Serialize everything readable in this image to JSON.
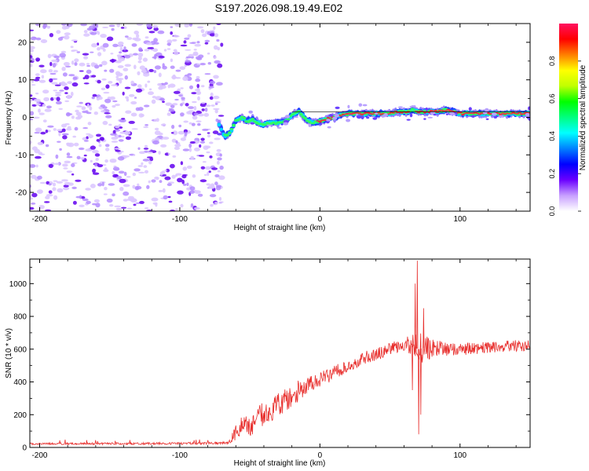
{
  "title": "S197.2026.098.19.49.E02",
  "colors": {
    "snr_line": "#e8302e",
    "ridge_core": "#e8303a",
    "axis": "#000000"
  },
  "chart_data": [
    {
      "type": "heatmap",
      "title": "S197.2026.098.19.49.E02",
      "xlabel": "Height of straight line (km)",
      "ylabel": "Frequency (Hz)",
      "xlim": [
        -207,
        150
      ],
      "ylim": [
        -25,
        25
      ],
      "xticks": [
        -200,
        -100,
        0,
        100
      ],
      "yticks": [
        -20,
        -10,
        0,
        10,
        20
      ],
      "colorbar": {
        "label": "Normalized spectral amplitude",
        "range": [
          0,
          1
        ],
        "ticks": [
          "0.0",
          "0.2",
          "0.4",
          "0.6",
          "0.8"
        ],
        "colors": [
          "#ffffff",
          "#c8a0ff",
          "#6a00ff",
          "#0000ff",
          "#0080ff",
          "#00ffff",
          "#00ff80",
          "#00ff00",
          "#c0ff00",
          "#ffff00",
          "#ff8000",
          "#ff0000",
          "#ff1060"
        ]
      },
      "noise_region_x": [
        -207,
        -70
      ],
      "ridge": {
        "x": [
          -72,
          -68,
          -64,
          -60,
          -56,
          -52,
          -48,
          -44,
          -40,
          -36,
          -30,
          -25,
          -20,
          -15,
          -10,
          -5,
          0,
          5,
          10,
          20,
          30,
          40,
          50,
          55,
          60,
          63,
          66,
          70,
          75,
          80,
          85,
          90,
          95,
          100,
          110,
          120,
          130,
          140,
          150
        ],
        "y": [
          -2,
          -5,
          -4,
          -1,
          0,
          -1,
          -0.5,
          -1.5,
          -2,
          -1.5,
          -1.5,
          -1,
          0.5,
          1.5,
          -0.5,
          -1.5,
          -1,
          -0.5,
          0,
          1,
          1,
          1,
          1,
          1.5,
          1.5,
          1.5,
          2,
          1.5,
          1.5,
          1.5,
          1.5,
          2,
          1.5,
          1,
          1,
          1,
          1,
          1,
          1
        ],
        "strength": [
          0.4,
          0.5,
          0.55,
          0.5,
          0.55,
          0.5,
          0.55,
          0.65,
          0.7,
          0.75,
          0.75,
          0.7,
          0.65,
          0.6,
          0.7,
          0.75,
          0.8,
          0.8,
          0.85,
          0.9,
          0.95,
          0.95,
          0.95,
          0.9,
          0.85,
          0.8,
          0.75,
          0.8,
          0.85,
          0.9,
          0.85,
          0.85,
          0.9,
          0.95,
          0.95,
          0.95,
          0.9,
          0.9,
          0.9
        ]
      }
    },
    {
      "type": "line",
      "xlabel": "Height of straight line (km)",
      "ylabel": "SNR (10 * v/v)",
      "xlim": [
        -207,
        150
      ],
      "ylim": [
        0,
        1150
      ],
      "xticks": [
        -200,
        -100,
        0,
        100
      ],
      "yticks": [
        0,
        200,
        400,
        600,
        800,
        1000
      ],
      "envelope": {
        "x": [
          -207,
          -100,
          -80,
          -65,
          -60,
          -55,
          -50,
          -45,
          -40,
          -35,
          -30,
          -25,
          -20,
          -15,
          -10,
          -5,
          0,
          10,
          20,
          30,
          40,
          50,
          60,
          65,
          70,
          75,
          80,
          90,
          100,
          110,
          120,
          130,
          140,
          150
        ],
        "mean": [
          22,
          24,
          25,
          28,
          90,
          160,
          120,
          180,
          210,
          230,
          250,
          290,
          310,
          350,
          380,
          390,
          410,
          460,
          500,
          540,
          570,
          600,
          620,
          630,
          600,
          610,
          600,
          600,
          600,
          605,
          610,
          615,
          620,
          620
        ],
        "noise": [
          6,
          7,
          7,
          8,
          60,
          70,
          60,
          70,
          80,
          80,
          80,
          70,
          70,
          65,
          60,
          55,
          50,
          45,
          40,
          40,
          40,
          40,
          45,
          60,
          110,
          90,
          60,
          45,
          40,
          35,
          35,
          35,
          35,
          35
        ]
      },
      "spikes": [
        {
          "x": 69.5,
          "y": 1140
        },
        {
          "x": 70.5,
          "y": 80
        },
        {
          "x": 68,
          "y": 1000
        },
        {
          "x": 72,
          "y": 200
        },
        {
          "x": 74,
          "y": 850
        },
        {
          "x": 66,
          "y": 350
        }
      ]
    }
  ]
}
